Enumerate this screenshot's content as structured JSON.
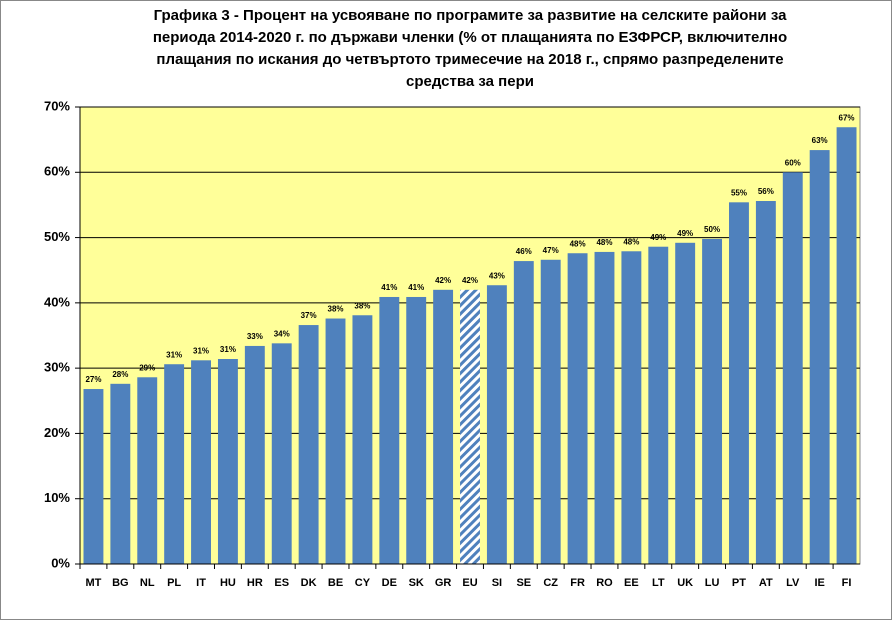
{
  "chart_data": {
    "type": "bar",
    "title": [
      "Графика 3 - Процент на усвояване по програмите за развитие на селските райони за",
      "периода 2014-2020 г. по държави членки (% от плащанията по ЕЗФРСР, включително",
      "плащания по искания до четвъртото тримесечие на 2018 г., спрямо разпределените",
      "средства за пери"
    ],
    "categories": [
      "MT",
      "BG",
      "NL",
      "PL",
      "IT",
      "HU",
      "HR",
      "ES",
      "DK",
      "BE",
      "CY",
      "DE",
      "SK",
      "GR",
      "EU",
      "SI",
      "SE",
      "CZ",
      "FR",
      "RO",
      "EE",
      "LT",
      "UK",
      "LU",
      "PT",
      "AT",
      "LV",
      "IE",
      "FI"
    ],
    "values": [
      26.8,
      27.6,
      28.6,
      30.6,
      31.2,
      31.4,
      33.4,
      33.8,
      36.6,
      37.6,
      38.1,
      40.9,
      40.9,
      42.0,
      42.0,
      42.7,
      46.4,
      46.6,
      47.6,
      47.8,
      47.9,
      48.6,
      49.2,
      49.8,
      55.4,
      55.6,
      60.0,
      63.4,
      66.9
    ],
    "value_labels": [
      "27%",
      "28%",
      "29%",
      "31%",
      "31%",
      "31%",
      "33%",
      "34%",
      "37%",
      "38%",
      "38%",
      "41%",
      "41%",
      "42%",
      "42%",
      "43%",
      "46%",
      "47%",
      "48%",
      "48%",
      "48%",
      "49%",
      "49%",
      "50%",
      "55%",
      "56%",
      "60%",
      "63%",
      "67%"
    ],
    "color": "#4f81bd",
    "hatched_categories": [
      "EU"
    ],
    "background": "#ffff99",
    "ylim": [
      0,
      70
    ],
    "yticks": [
      {
        "value": 0,
        "label": "0%"
      },
      {
        "value": 10,
        "label": "10%"
      },
      {
        "value": 20,
        "label": "20%"
      },
      {
        "value": 30,
        "label": "30%"
      },
      {
        "value": 40,
        "label": "40%"
      },
      {
        "value": 50,
        "label": "50%"
      },
      {
        "value": 60,
        "label": "60%"
      },
      {
        "value": 70,
        "label": "70%"
      }
    ],
    "grid": true
  }
}
